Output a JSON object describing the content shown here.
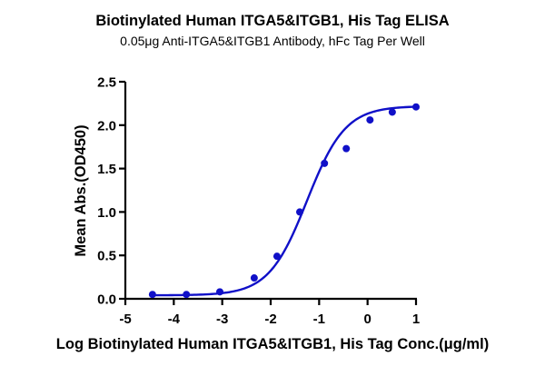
{
  "header": {
    "title": "Biotinylated Human ITGA5&ITGB1, His Tag ELISA",
    "subtitle": "0.05μg Anti-ITGA5&ITGB1 Antibody, hFc Tag Per Well"
  },
  "axes": {
    "xlabel": "Log Biotinylated Human ITGA5&ITGB1, His Tag Conc.(μg/ml)",
    "ylabel": "Mean Abs.(OD450)",
    "xticks": [
      "-5",
      "-4",
      "-3",
      "-2",
      "-1",
      "0",
      "1"
    ],
    "yticks": [
      "0.0",
      "0.5",
      "1.0",
      "1.5",
      "2.0",
      "2.5"
    ]
  },
  "colors": {
    "series": "#1010c8",
    "axis": "#000000"
  },
  "chart_data": {
    "type": "scatter",
    "title": "Biotinylated Human ITGA5&ITGB1, His Tag ELISA",
    "subtitle": "0.05μg Anti-ITGA5&ITGB1 Antibody, hFc Tag Per Well",
    "xlabel": "Log Biotinylated Human ITGA5&ITGB1, His Tag Conc.(μg/ml)",
    "ylabel": "Mean Abs.(OD450)",
    "xlim": [
      -5,
      1
    ],
    "ylim": [
      0,
      2.5
    ],
    "xticks": [
      -5,
      -4,
      -3,
      -2,
      -1,
      0,
      1
    ],
    "yticks": [
      0.0,
      0.5,
      1.0,
      1.5,
      2.0,
      2.5
    ],
    "grid": false,
    "legend": null,
    "series": [
      {
        "name": "Mean Abs.(OD450)",
        "marker": "circle",
        "fit": "4-parameter logistic (sigmoidal) curve",
        "x": [
          -4.44,
          -3.74,
          -3.05,
          -2.34,
          -1.87,
          -1.4,
          -0.89,
          -0.44,
          0.05,
          0.51,
          1.0
        ],
        "y": [
          0.05,
          0.05,
          0.08,
          0.24,
          0.49,
          1.0,
          1.56,
          1.73,
          2.06,
          2.15,
          2.21
        ]
      }
    ],
    "fit_params_estimate": {
      "bottom": 0.04,
      "top": 2.22,
      "logEC50": -1.25,
      "hillslope": 1.1
    }
  }
}
